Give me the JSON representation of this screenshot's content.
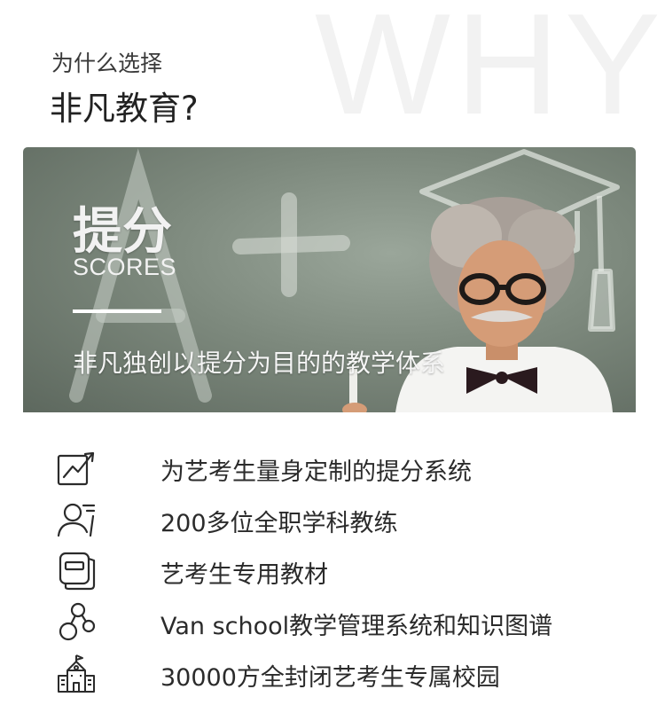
{
  "header": {
    "background_word": "WHY",
    "kicker": "为什么选择",
    "title": "非凡教育?"
  },
  "banner": {
    "title": "提分",
    "subtitle": "SCORES",
    "tagline": "非凡独创以提分为目的的教学体系",
    "chalk_mark": "A+"
  },
  "features": [
    {
      "icon": "growth-chart-icon",
      "label": "为艺考生量身定制的提分系统"
    },
    {
      "icon": "teacher-icon",
      "label": "200多位全职学科教练"
    },
    {
      "icon": "textbook-icon",
      "label": "艺考生专用教材"
    },
    {
      "icon": "knowledge-graph-icon",
      "label": "Van school教学管理系统和知识图谱"
    },
    {
      "icon": "school-building-icon",
      "label": "30000方全封闭艺考生专属校园"
    }
  ],
  "colors": {
    "text": "#2b2b2b",
    "background_word": "#f2f2f2",
    "banner_chalkboard": "#7d897d",
    "banner_text": "#f2f2f2"
  }
}
